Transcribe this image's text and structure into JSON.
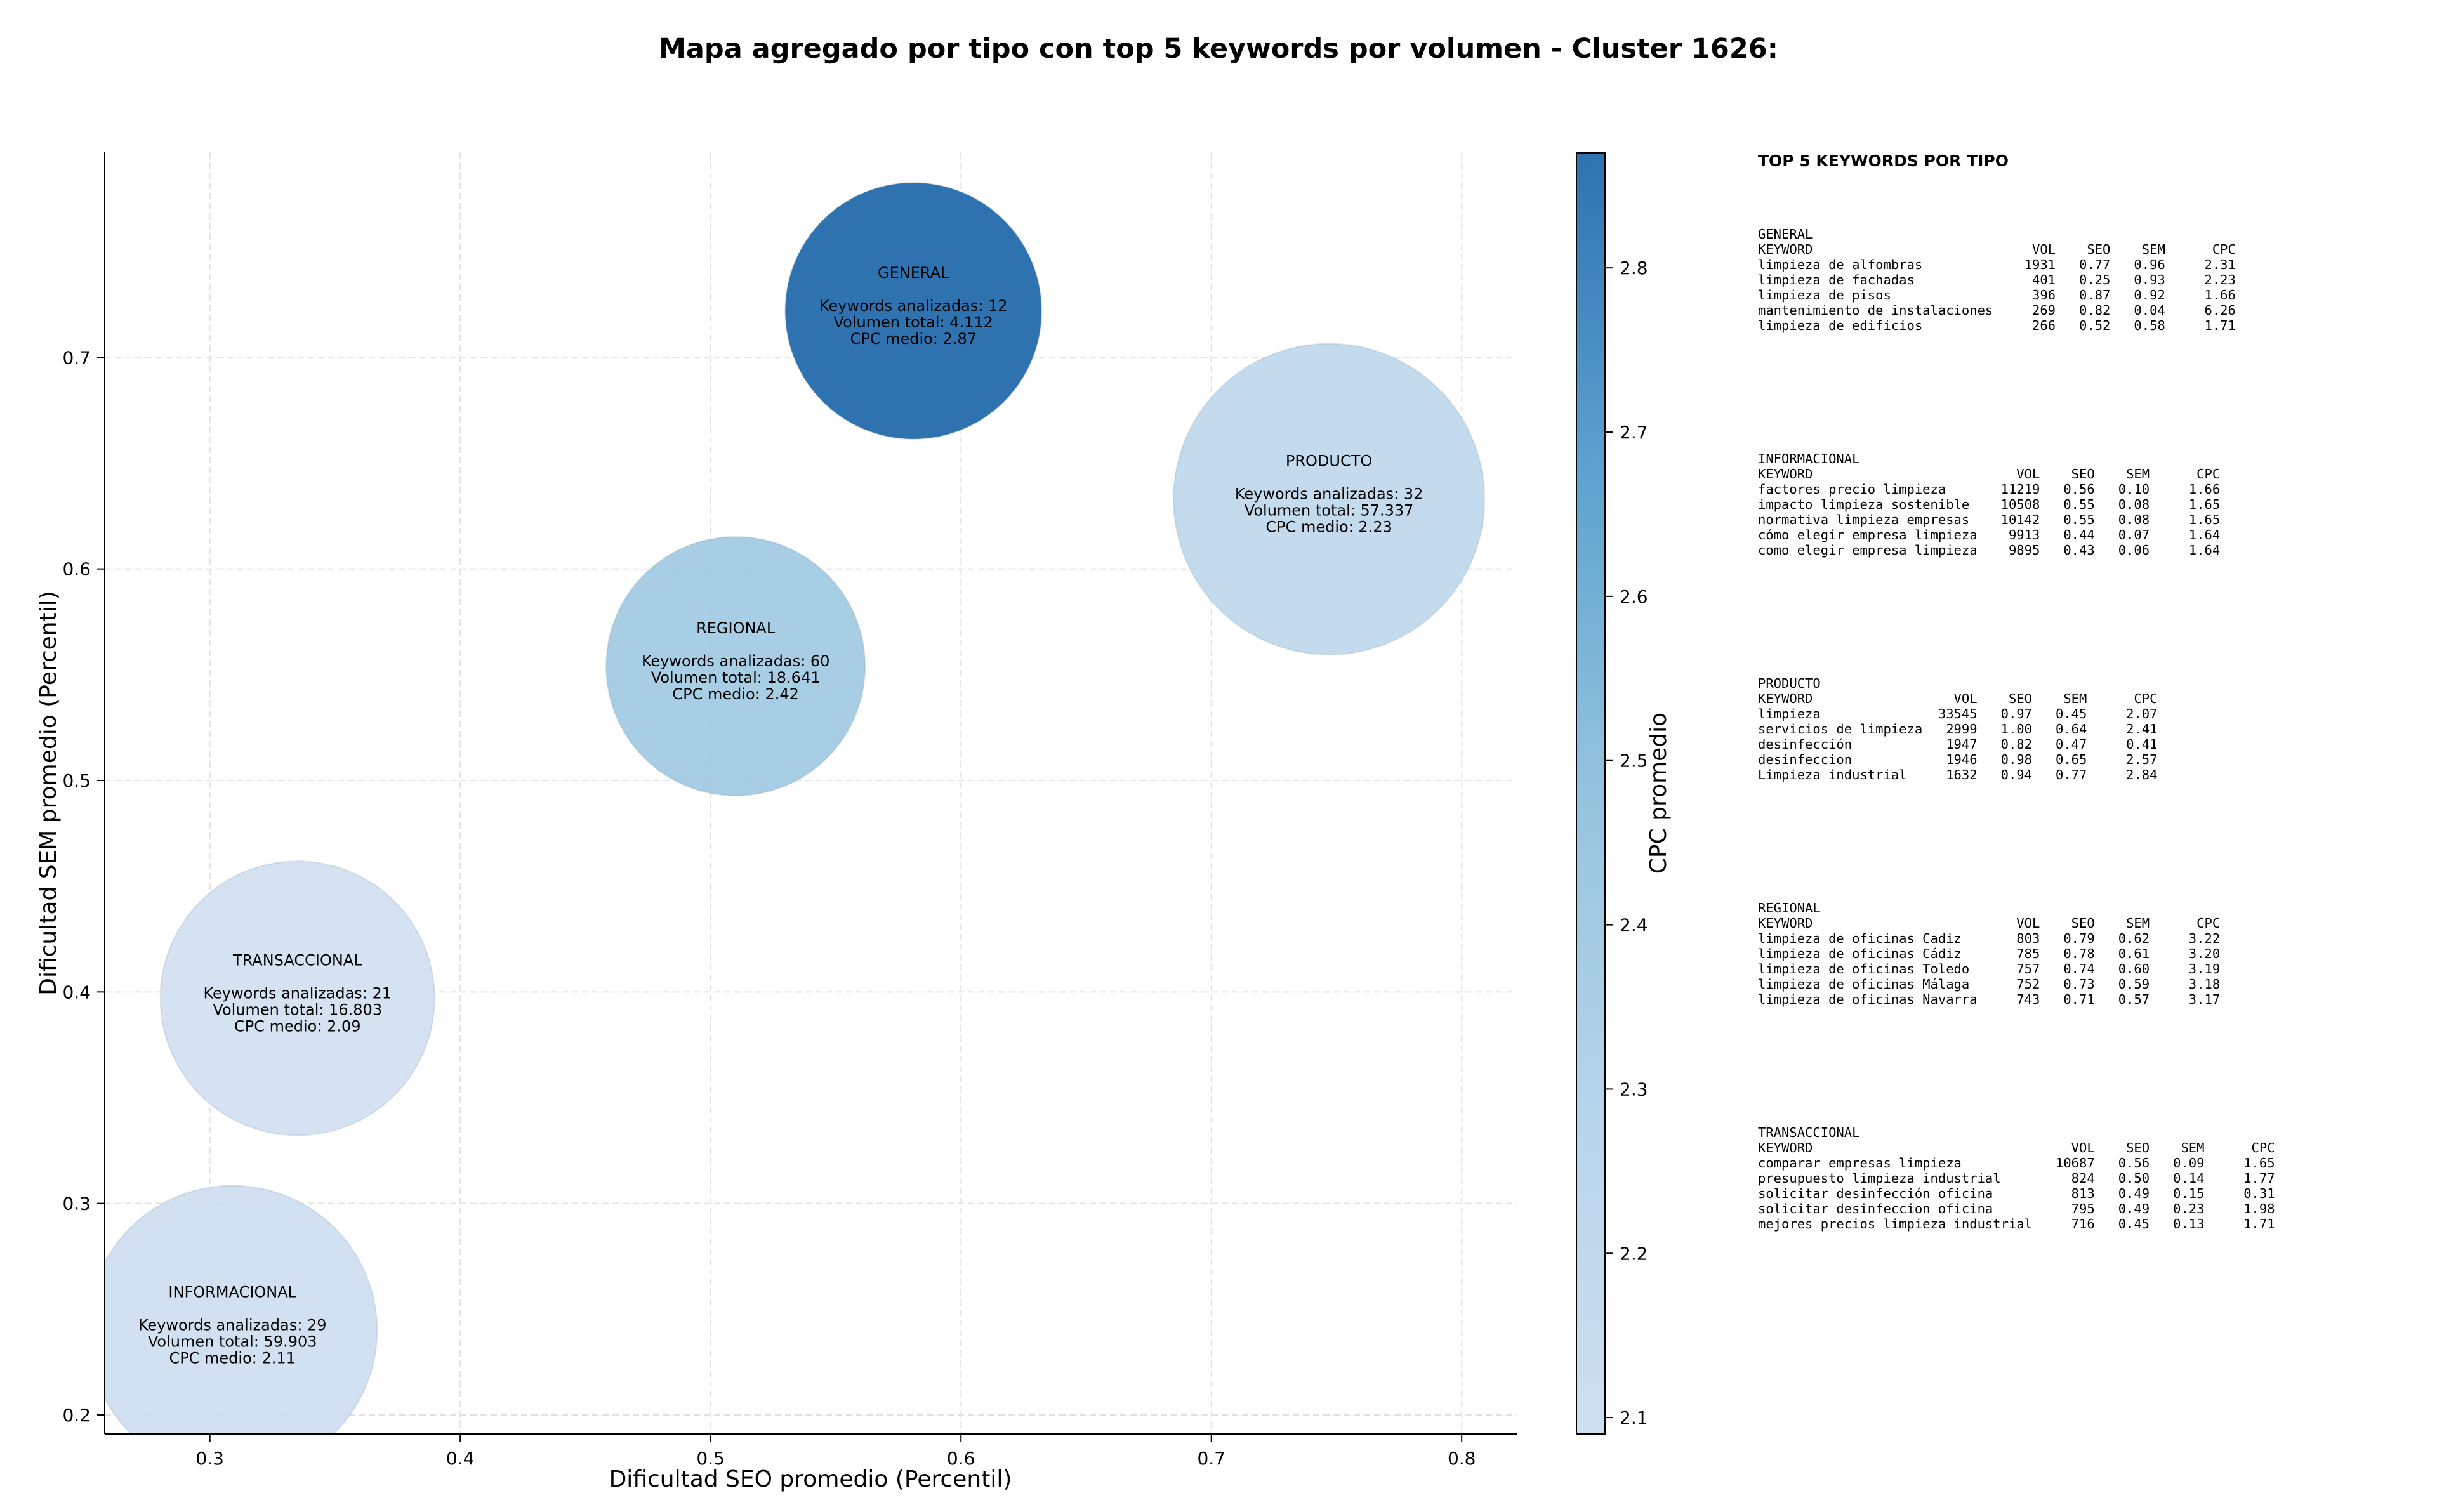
{
  "chart_data": {
    "type": "scatter",
    "title": "Mapa agregado por tipo con top 5 keywords por volumen - Cluster 1626:",
    "xlabel": "Dificultad SEO promedio (Percentil)",
    "ylabel": "Dificultad SEM promedio (Percentil)",
    "colorbar_label": "CPC promedio",
    "xlim": [
      0.258,
      0.822
    ],
    "ylim": [
      0.191,
      0.797
    ],
    "x_ticks": [
      "0.3",
      "0.4",
      "0.5",
      "0.6",
      "0.7",
      "0.8"
    ],
    "y_ticks": [
      "0.2",
      "0.3",
      "0.4",
      "0.5",
      "0.6",
      "0.7"
    ],
    "colorbar_ticks": [
      "2.1",
      "2.2",
      "2.3",
      "2.4",
      "2.5",
      "2.6",
      "2.7",
      "2.8"
    ],
    "clim": [
      2.09,
      2.87
    ],
    "grid": true,
    "points": [
      {
        "name": "GENERAL",
        "x": 0.581,
        "y": 0.722,
        "keywords": 12,
        "volume": 4112,
        "cpc": 2.87,
        "lines": [
          "Keywords analizadas: 12",
          "Volumen total: 4.112",
          "CPC medio: 2.87"
        ]
      },
      {
        "name": "PRODUCTO",
        "x": 0.747,
        "y": 0.633,
        "keywords": 32,
        "volume": 57337,
        "cpc": 2.23,
        "lines": [
          "Keywords analizadas: 32",
          "Volumen total: 57.337",
          "CPC medio: 2.23"
        ]
      },
      {
        "name": "REGIONAL",
        "x": 0.51,
        "y": 0.554,
        "keywords": 60,
        "volume": 18641,
        "cpc": 2.42,
        "lines": [
          "Keywords analizadas: 60",
          "Volumen total: 18.641",
          "CPC medio: 2.42"
        ]
      },
      {
        "name": "TRANSACCIONAL",
        "x": 0.335,
        "y": 0.397,
        "keywords": 21,
        "volume": 16803,
        "cpc": 2.09,
        "lines": [
          "Keywords analizadas: 21",
          "Volumen total: 16.803",
          "CPC medio: 2.09"
        ]
      },
      {
        "name": "INFORMACIONAL",
        "x": 0.309,
        "y": 0.24,
        "keywords": 29,
        "volume": 59903,
        "cpc": 2.11,
        "lines": [
          "Keywords analizadas: 29",
          "Volumen total: 59.903",
          "CPC medio: 2.11"
        ]
      }
    ]
  },
  "side_panel": {
    "title": "TOP 5 KEYWORDS POR TIPO",
    "groups": [
      {
        "lines": [
          "GENERAL",
          "KEYWORD                            VOL    SEO    SEM      CPC",
          "limpieza de alfombras             1931   0.77   0.96     2.31",
          "limpieza de fachadas               401   0.25   0.93     2.23",
          "limpieza de pisos                  396   0.87   0.92     1.66",
          "mantenimiento de instalaciones     269   0.82   0.04     6.26",
          "limpieza de edificios              266   0.52   0.58     1.71"
        ]
      },
      {
        "lines": [
          "INFORMACIONAL",
          "KEYWORD                          VOL    SEO    SEM      CPC",
          "factores precio limpieza       11219   0.56   0.10     1.66",
          "impacto limpieza sostenible    10508   0.55   0.08     1.65",
          "normativa limpieza empresas    10142   0.55   0.08     1.65",
          "cómo elegir empresa limpieza    9913   0.44   0.07     1.64",
          "como elegir empresa limpieza    9895   0.43   0.06     1.64"
        ]
      },
      {
        "lines": [
          "PRODUCTO",
          "KEYWORD                  VOL    SEO    SEM      CPC",
          "limpieza               33545   0.97   0.45     2.07",
          "servicios de limpieza   2999   1.00   0.64     2.41",
          "desinfección            1947   0.82   0.47     0.41",
          "desinfeccion            1946   0.98   0.65     2.57",
          "Limpieza industrial     1632   0.94   0.77     2.84"
        ]
      },
      {
        "lines": [
          "REGIONAL",
          "KEYWORD                          VOL    SEO    SEM      CPC",
          "limpieza de oficinas Cadiz       803   0.79   0.62     3.22",
          "limpieza de oficinas Cádiz       785   0.78   0.61     3.20",
          "limpieza de oficinas Toledo      757   0.74   0.60     3.19",
          "limpieza de oficinas Málaga      752   0.73   0.59     3.18",
          "limpieza de oficinas Navarra     743   0.71   0.57     3.17"
        ]
      },
      {
        "lines": [
          "TRANSACCIONAL",
          "KEYWORD                                 VOL    SEO    SEM      CPC",
          "comparar empresas limpieza            10687   0.56   0.09     1.65",
          "presupuesto limpieza industrial         824   0.50   0.14     1.77",
          "solicitar desinfección oficina          813   0.49   0.15     0.31",
          "solicitar desinfeccion oficina          795   0.49   0.23     1.98",
          "mejores precios limpieza industrial     716   0.45   0.13     1.71"
        ]
      }
    ]
  }
}
